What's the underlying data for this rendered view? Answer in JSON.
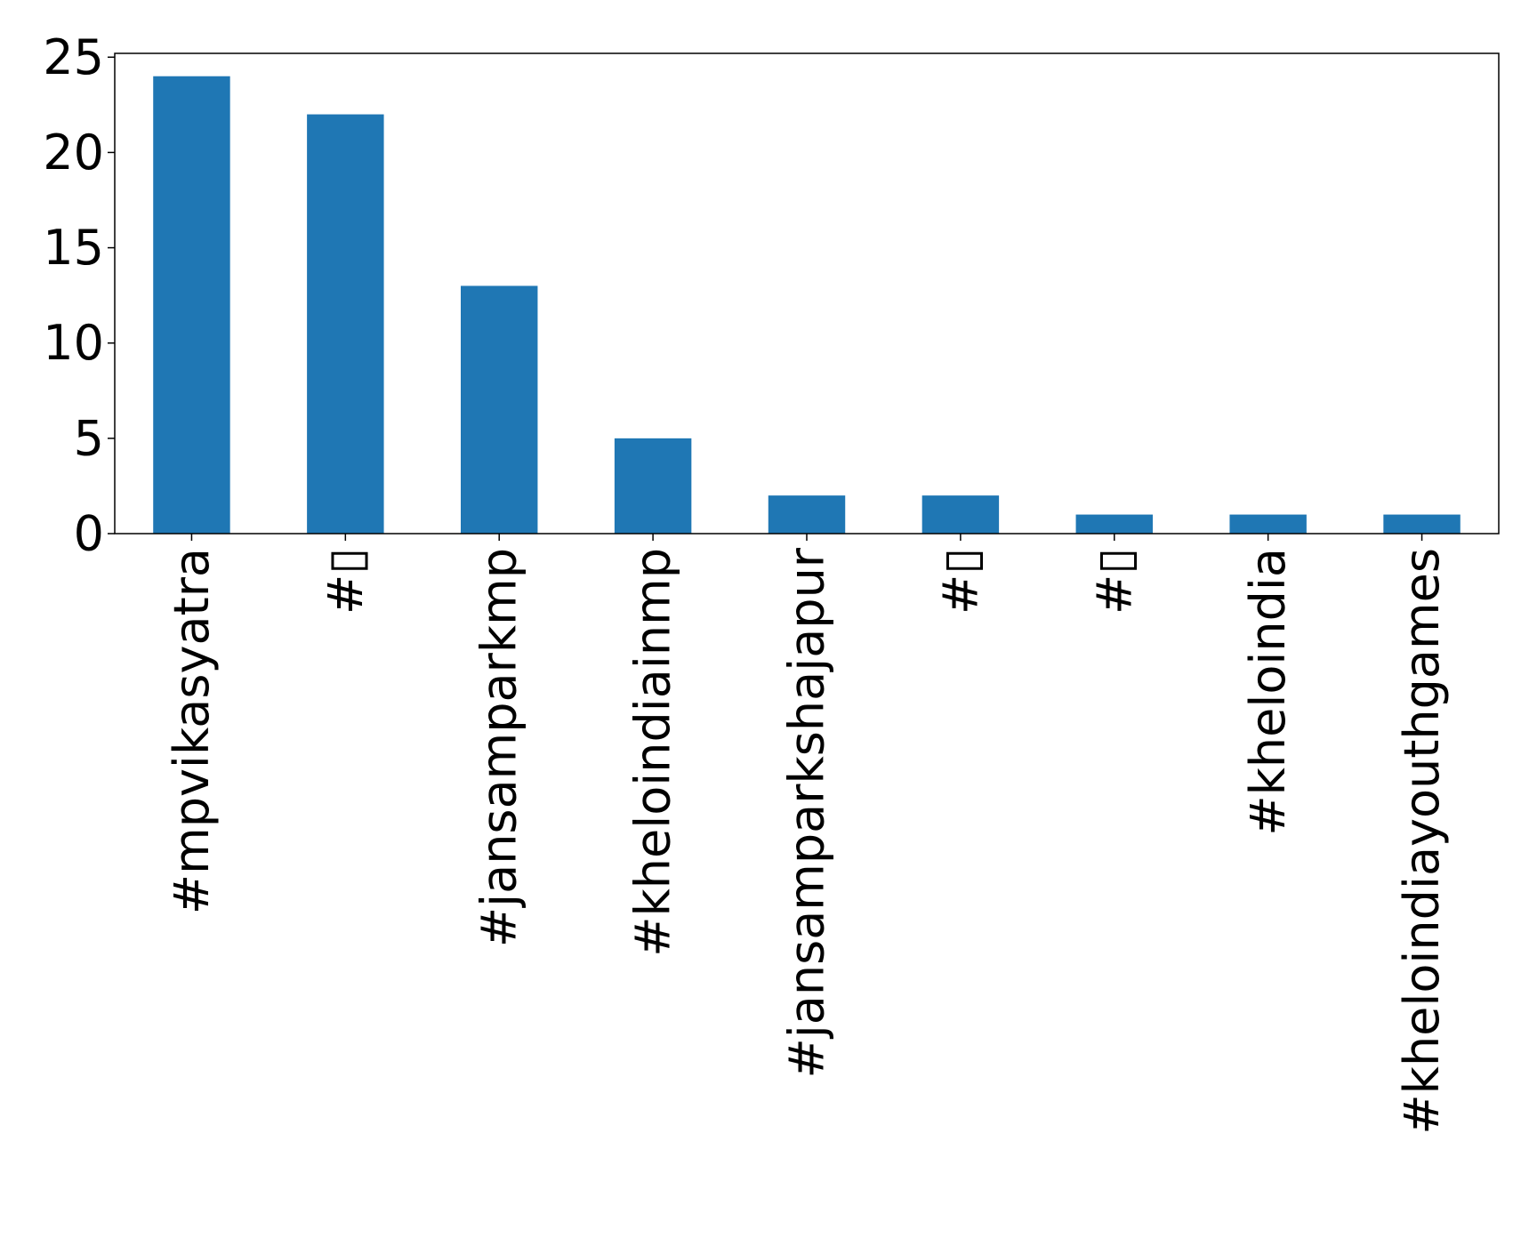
{
  "chart_data": {
    "type": "bar",
    "title": "",
    "xlabel": "",
    "ylabel": "",
    "categories": [
      "#mpvikasyatra",
      "#▯",
      "#jansamparkmp",
      "#kheloindiainmp",
      "#jansamparkshajapur",
      "#▯",
      "#▯",
      "#kheloindia",
      "#kheloindiayouthgames"
    ],
    "values": [
      24,
      22,
      13,
      5,
      2,
      2,
      1,
      1,
      1
    ],
    "ylim": [
      0,
      25.2
    ],
    "yticks": [
      0,
      5,
      10,
      15,
      20,
      25
    ],
    "grid": false,
    "legend": "none",
    "bar_color": "#1f77b4"
  }
}
